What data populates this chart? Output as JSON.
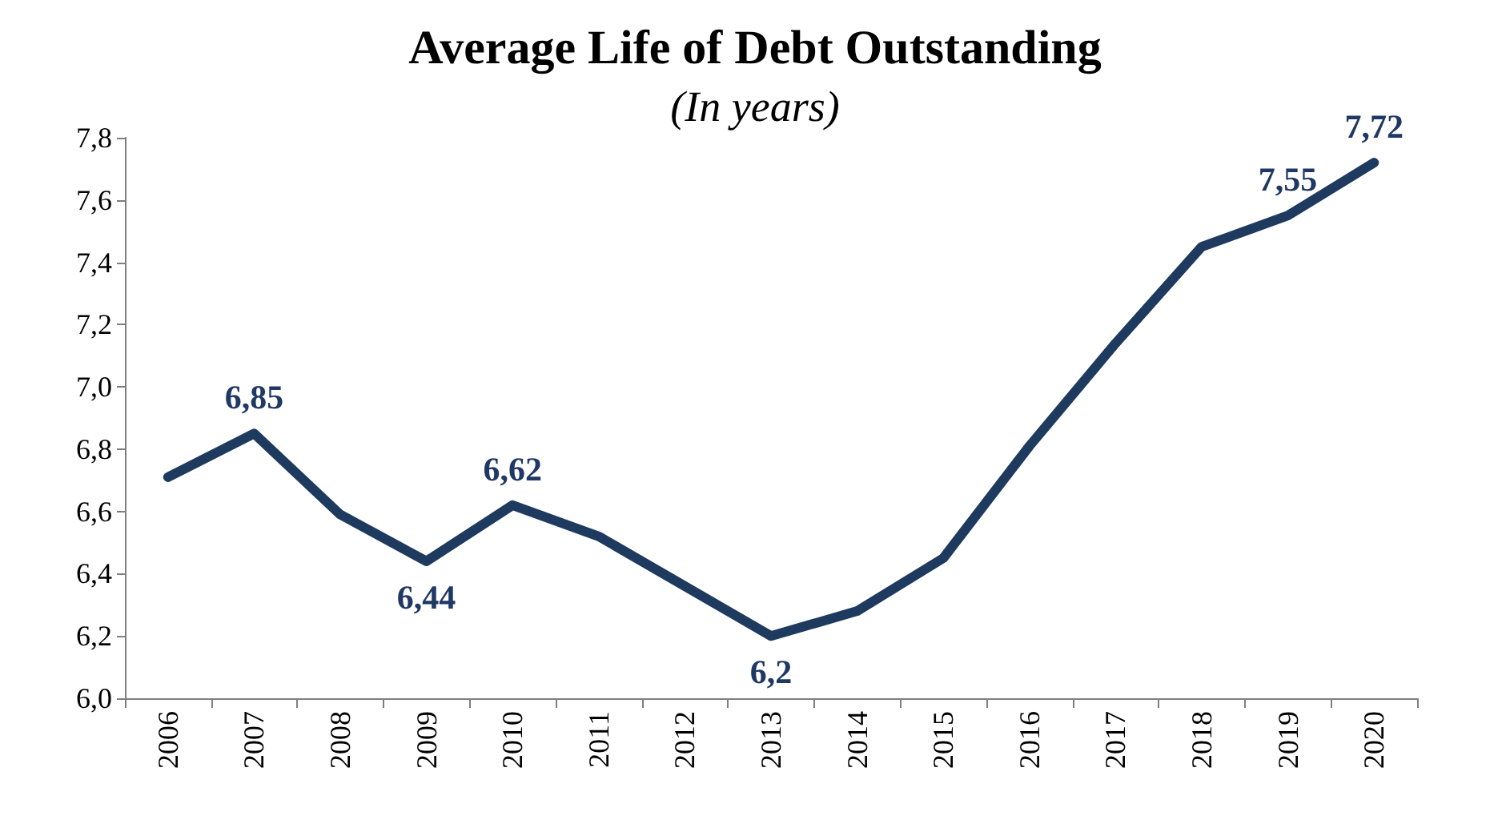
{
  "chart_data": {
    "type": "line",
    "title": "Average Life of Debt Outstanding",
    "subtitle": "(In years)",
    "categories": [
      "2006",
      "2007",
      "2008",
      "2009",
      "2010",
      "2011",
      "2012",
      "2013",
      "2014",
      "2015",
      "2016",
      "2017",
      "2018",
      "2019",
      "2020"
    ],
    "series": [
      {
        "color": "#1f3a5f",
        "values": [
          6.71,
          6.85,
          6.59,
          6.44,
          6.62,
          6.52,
          6.36,
          6.2,
          6.28,
          6.45,
          6.81,
          7.14,
          7.45,
          7.55,
          7.72
        ],
        "value_labels": [
          null,
          "6,85",
          null,
          "6,44",
          "6,62",
          null,
          null,
          "6,2",
          null,
          null,
          null,
          null,
          null,
          "7,55",
          "7,72"
        ]
      }
    ],
    "ylim": [
      6.0,
      7.8
    ],
    "yticks": [
      {
        "value": 6.0,
        "label": "6,0"
      },
      {
        "value": 6.2,
        "label": "6,2"
      },
      {
        "value": 6.4,
        "label": "6,4"
      },
      {
        "value": 6.6,
        "label": "6,6"
      },
      {
        "value": 6.8,
        "label": "6,8"
      },
      {
        "value": 7.0,
        "label": "7,0"
      },
      {
        "value": 7.2,
        "label": "7,2"
      },
      {
        "value": 7.4,
        "label": "7,4"
      },
      {
        "value": 7.6,
        "label": "7,6"
      },
      {
        "value": 7.8,
        "label": "7,8"
      }
    ],
    "grid": false,
    "marker": "none",
    "line_style": "solid"
  }
}
